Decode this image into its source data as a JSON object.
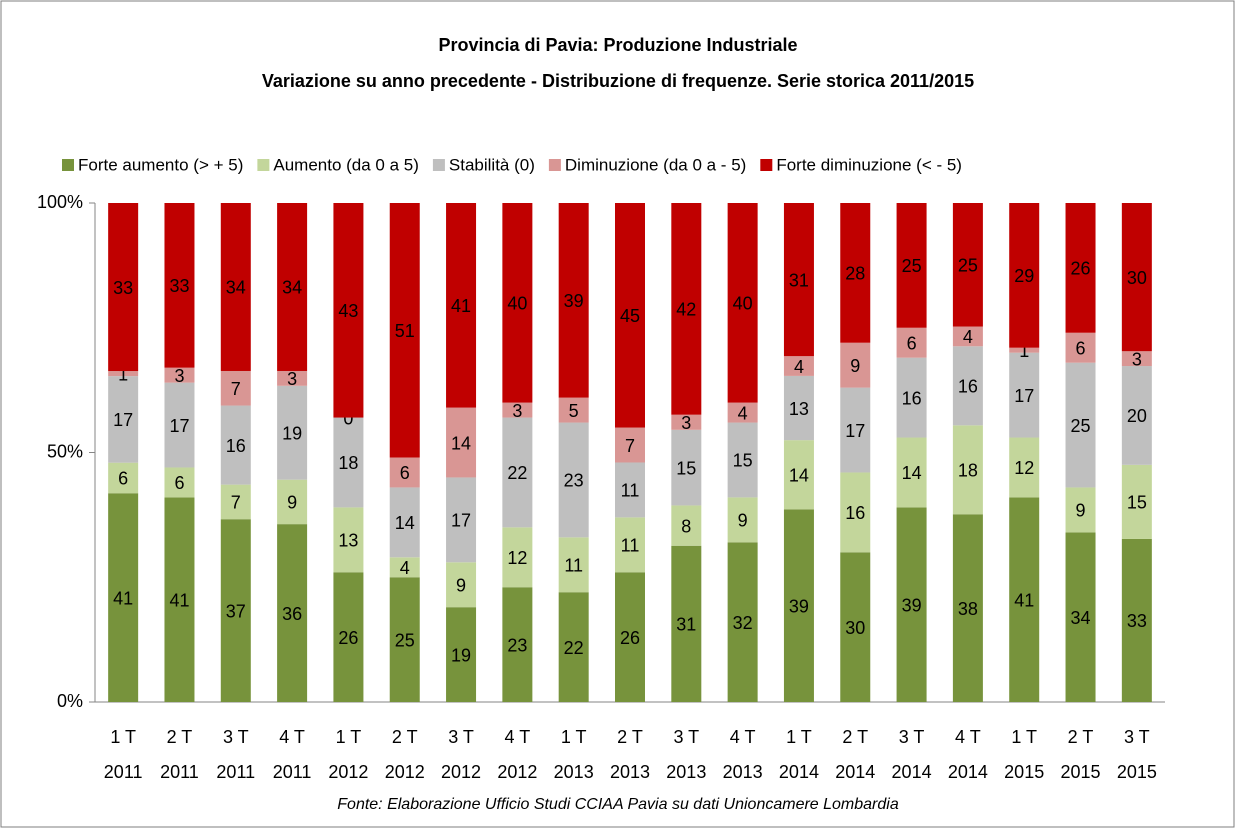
{
  "chart_data": {
    "type": "bar",
    "stacking": "percent",
    "title": "Provincia di Pavia: Produzione Industriale",
    "subtitle": "Variazione su anno precedente - Distribuzione di frequenze. Serie storica 2011/2015",
    "source": "Fonte: Elaborazione Ufficio Studi CCIAA Pavia su dati Unioncamere Lombardia",
    "categories": [
      "1 T 2011",
      "2 T 2011",
      "3 T 2011",
      "4 T 2011",
      "1 T 2012",
      "2 T 2012",
      "3 T 2012",
      "4 T 2012",
      "1 T 2013",
      "2 T 2013",
      "3 T 2013",
      "4 T 2013",
      "1 T 2014",
      "2 T 2014",
      "3 T 2014",
      "4 T 2014",
      "1 T 2015",
      "2 T 2015",
      "3 T 2015"
    ],
    "series": [
      {
        "name": "Forte aumento (> + 5)",
        "color": "#77933c",
        "values": [
          41,
          41,
          37,
          36,
          26,
          25,
          19,
          23,
          22,
          26,
          31,
          32,
          39,
          30,
          39,
          38,
          41,
          34,
          33
        ]
      },
      {
        "name": "Aumento (da 0 a 5)",
        "color": "#c3d69b",
        "values": [
          6,
          6,
          7,
          9,
          13,
          4,
          9,
          12,
          11,
          11,
          8,
          9,
          14,
          16,
          14,
          18,
          12,
          9,
          15
        ]
      },
      {
        "name": "Stabilità (0)",
        "color": "#bfbfbf",
        "values": [
          17,
          17,
          16,
          19,
          18,
          14,
          17,
          22,
          23,
          11,
          15,
          15,
          13,
          17,
          16,
          16,
          17,
          25,
          20
        ]
      },
      {
        "name": "Diminuzione (da 0 a - 5)",
        "color": "#d99694",
        "values": [
          1,
          3,
          7,
          3,
          0,
          6,
          14,
          3,
          5,
          7,
          3,
          4,
          4,
          9,
          6,
          4,
          1,
          6,
          3
        ]
      },
      {
        "name": "Forte diminuzione (< - 5)",
        "color": "#c00000",
        "values": [
          33,
          33,
          34,
          34,
          43,
          51,
          41,
          40,
          39,
          45,
          42,
          40,
          31,
          28,
          25,
          25,
          29,
          26,
          30
        ]
      }
    ],
    "ylim": [
      0,
      100
    ],
    "yticks": [
      {
        "value": 0,
        "label": "0%"
      },
      {
        "value": 50,
        "label": "50%"
      },
      {
        "value": 100,
        "label": "100%"
      }
    ],
    "legend": "top"
  }
}
